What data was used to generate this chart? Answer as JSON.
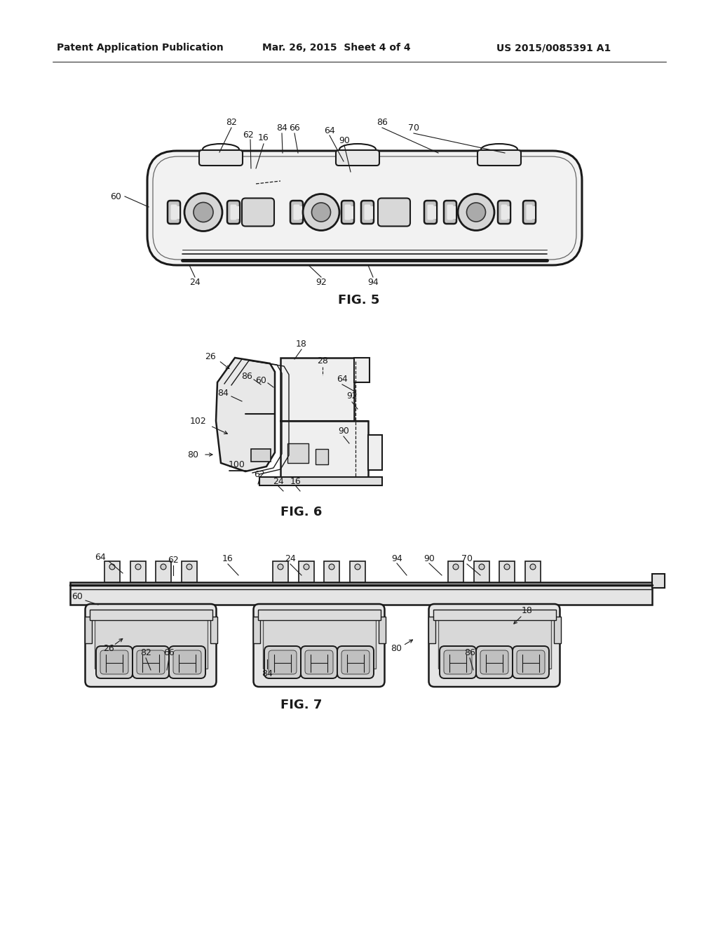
{
  "background_color": "#ffffff",
  "header_left": "Patent Application Publication",
  "header_mid": "Mar. 26, 2015  Sheet 4 of 4",
  "header_right": "US 2015/0085391 A1",
  "fig5_label": "FIG. 5",
  "fig6_label": "FIG. 6",
  "fig7_label": "FIG. 7",
  "line_color": "#1a1a1a",
  "text_color": "#1a1a1a"
}
